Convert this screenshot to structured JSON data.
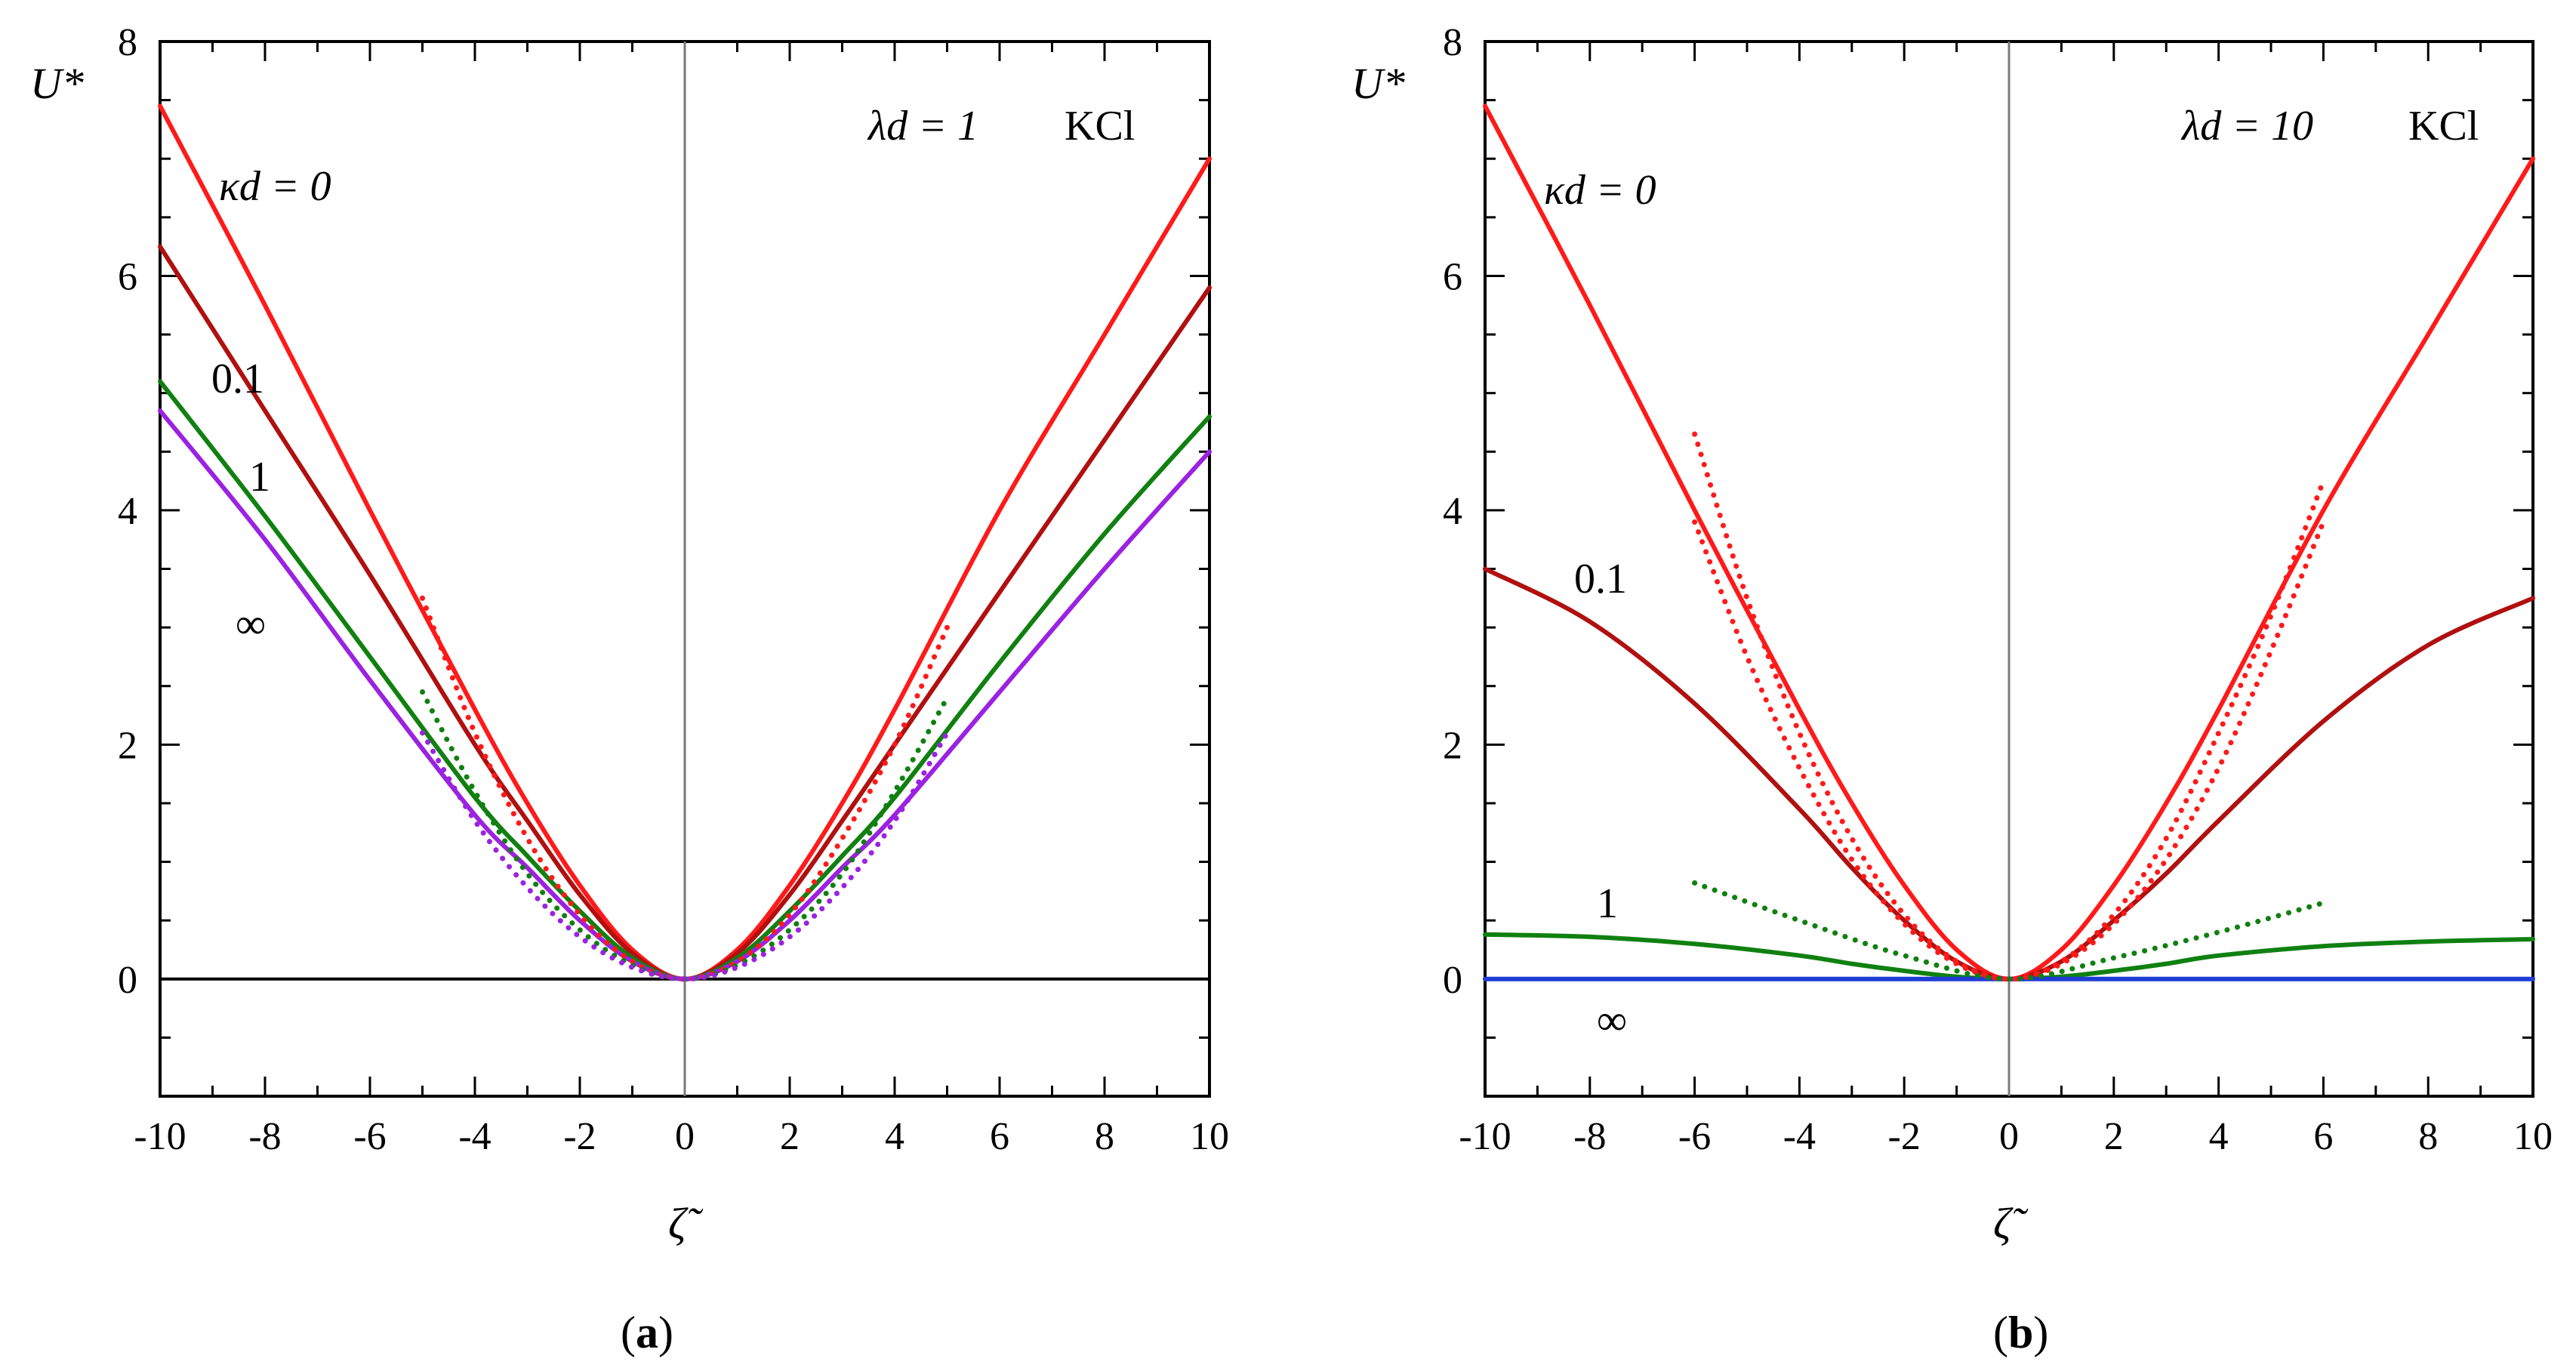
{
  "chart_data": [
    {
      "panel": "a",
      "type": "line",
      "caption": "(a)",
      "caption_letter": "a",
      "xlabel": "ζ̃",
      "ylabel": "U*",
      "xlim": [
        -10,
        10
      ],
      "ylim": [
        -1,
        8
      ],
      "xticks": [
        -10,
        -8,
        -6,
        -4,
        -2,
        0,
        2,
        4,
        6,
        8,
        10
      ],
      "yticks": [
        0,
        2,
        4,
        6,
        8
      ],
      "annotation_param": "λd = 1",
      "annotation_salt": "KCl",
      "series": [
        {
          "name": "κd = 0",
          "label": "κd = 0",
          "color": "#ff1a1a",
          "style": "solid",
          "x": [
            -10,
            -8,
            -6,
            -4,
            -3,
            -2,
            -1,
            0,
            1,
            2,
            3,
            4,
            6,
            8,
            10
          ],
          "y": [
            7.45,
            5.75,
            4.0,
            2.3,
            1.5,
            0.8,
            0.25,
            0,
            0.25,
            0.8,
            1.5,
            2.3,
            4.0,
            5.5,
            7.0
          ]
        },
        {
          "name": "κd = 0.1",
          "label": "0.1",
          "color": "#b01010",
          "style": "solid",
          "x": [
            -10,
            -8,
            -6,
            -4,
            -3,
            -2,
            -1,
            0,
            1,
            2,
            3,
            4,
            6,
            8,
            10
          ],
          "y": [
            6.25,
            4.85,
            3.45,
            2.0,
            1.35,
            0.72,
            0.22,
            0,
            0.22,
            0.72,
            1.35,
            2.0,
            3.3,
            4.6,
            5.9
          ]
        },
        {
          "name": "κd = 1",
          "label": "1",
          "color": "#108010",
          "style": "solid",
          "x": [
            -10,
            -8,
            -6,
            -4,
            -3,
            -2,
            -1,
            0,
            1,
            2,
            3,
            4,
            6,
            8,
            10
          ],
          "y": [
            5.1,
            3.95,
            2.75,
            1.55,
            1.05,
            0.58,
            0.18,
            0,
            0.18,
            0.58,
            1.05,
            1.55,
            2.7,
            3.8,
            4.8
          ]
        },
        {
          "name": "κd = ∞",
          "label": "∞",
          "color": "#9b22e0",
          "style": "solid",
          "x": [
            -10,
            -8,
            -6,
            -4,
            -3,
            -2,
            -1,
            0,
            1,
            2,
            3,
            4,
            6,
            8,
            10
          ],
          "y": [
            4.85,
            3.75,
            2.55,
            1.4,
            0.95,
            0.5,
            0.15,
            0,
            0.15,
            0.5,
            0.95,
            1.4,
            2.45,
            3.5,
            4.5
          ]
        },
        {
          "name": "κd = 0 (approx.)",
          "color": "#ff1a1a",
          "style": "dotted",
          "x": [
            -5,
            -4,
            -3,
            -2,
            -1,
            0,
            1,
            2,
            3,
            4,
            5
          ],
          "y": [
            3.25,
            2.1,
            1.2,
            0.55,
            0.15,
            0,
            0.15,
            0.55,
            1.2,
            2.0,
            3.0
          ]
        },
        {
          "name": "κd = 1 (approx.)",
          "color": "#108010",
          "style": "dotted",
          "x": [
            -5,
            -4,
            -3,
            -2,
            -1,
            0,
            1,
            2,
            3,
            4,
            5
          ],
          "y": [
            2.45,
            1.6,
            0.9,
            0.42,
            0.12,
            0,
            0.12,
            0.42,
            0.9,
            1.6,
            2.4
          ]
        },
        {
          "name": "κd = ∞ (approx.)",
          "color": "#9b22e0",
          "style": "dotted",
          "x": [
            -5,
            -4,
            -3,
            -2,
            -1,
            0,
            1,
            2,
            3,
            4,
            5
          ],
          "y": [
            2.1,
            1.35,
            0.78,
            0.36,
            0.1,
            0,
            0.1,
            0.36,
            0.78,
            1.35,
            2.1
          ]
        }
      ]
    },
    {
      "panel": "b",
      "type": "line",
      "caption": "(b)",
      "caption_letter": "b",
      "xlabel": "ζ̃",
      "ylabel": "U*",
      "xlim": [
        -10,
        10
      ],
      "ylim": [
        -1,
        8
      ],
      "xticks": [
        -10,
        -8,
        -6,
        -4,
        -2,
        0,
        2,
        4,
        6,
        8,
        10
      ],
      "yticks": [
        0,
        2,
        4,
        6,
        8
      ],
      "annotation_param": "λd = 10",
      "annotation_salt": "KCl",
      "series": [
        {
          "name": "κd = 0",
          "label": "κd = 0",
          "color": "#ff1a1a",
          "style": "solid",
          "x": [
            -10,
            -8,
            -6,
            -4,
            -3,
            -2,
            -1,
            0,
            1,
            2,
            3,
            4,
            6,
            8,
            10
          ],
          "y": [
            7.45,
            5.75,
            4.0,
            2.3,
            1.5,
            0.8,
            0.25,
            0,
            0.25,
            0.8,
            1.5,
            2.3,
            4.0,
            5.5,
            7.0
          ]
        },
        {
          "name": "κd = 0.1",
          "label": "0.1",
          "color": "#b01010",
          "style": "solid",
          "x": [
            -10,
            -8,
            -6,
            -4,
            -3,
            -2,
            -1,
            0,
            1,
            2,
            3,
            4,
            6,
            8,
            10
          ],
          "y": [
            3.5,
            3.05,
            2.35,
            1.45,
            0.95,
            0.5,
            0.15,
            0,
            0.15,
            0.5,
            0.9,
            1.35,
            2.2,
            2.85,
            3.25
          ]
        },
        {
          "name": "κd = 1",
          "label": "1",
          "color": "#108010",
          "style": "solid",
          "x": [
            -10,
            -8,
            -6,
            -4,
            -3,
            -2,
            -1,
            0,
            1,
            2,
            3,
            4,
            6,
            8,
            10
          ],
          "y": [
            0.38,
            0.36,
            0.3,
            0.2,
            0.13,
            0.07,
            0.02,
            0,
            0.02,
            0.07,
            0.13,
            0.2,
            0.28,
            0.32,
            0.34
          ]
        },
        {
          "name": "κd = ∞",
          "label": "∞",
          "color": "#1f3bd6",
          "style": "solid",
          "x": [
            -10,
            10
          ],
          "y": [
            0,
            0
          ]
        },
        {
          "name": "κd = 0 (approx.)",
          "color": "#ff1a1a",
          "style": "dotted",
          "x": [
            -6,
            -5,
            -4,
            -3,
            -2,
            -1,
            0,
            1,
            2,
            3,
            4,
            5,
            6
          ],
          "y": [
            4.65,
            3.25,
            2.1,
            1.2,
            0.55,
            0.15,
            0,
            0.15,
            0.55,
            1.2,
            2.1,
            3.1,
            4.25
          ]
        },
        {
          "name": "κd = 0.1 (approx.)",
          "color": "#ff1a1a",
          "style": "dotted",
          "x": [
            -6,
            -5,
            -4,
            -3,
            -2,
            -1,
            0,
            1,
            2,
            3,
            4,
            5,
            6
          ],
          "y": [
            3.9,
            2.75,
            1.8,
            1.02,
            0.47,
            0.13,
            0,
            0.13,
            0.47,
            1.02,
            1.8,
            2.8,
            3.9
          ]
        },
        {
          "name": "κd = 1 (approx.)",
          "color": "#108010",
          "style": "dotted",
          "x": [
            -6,
            -4,
            -2,
            0,
            2,
            4,
            6
          ],
          "y": [
            0.82,
            0.5,
            0.2,
            0,
            0.18,
            0.4,
            0.65
          ]
        }
      ]
    }
  ]
}
